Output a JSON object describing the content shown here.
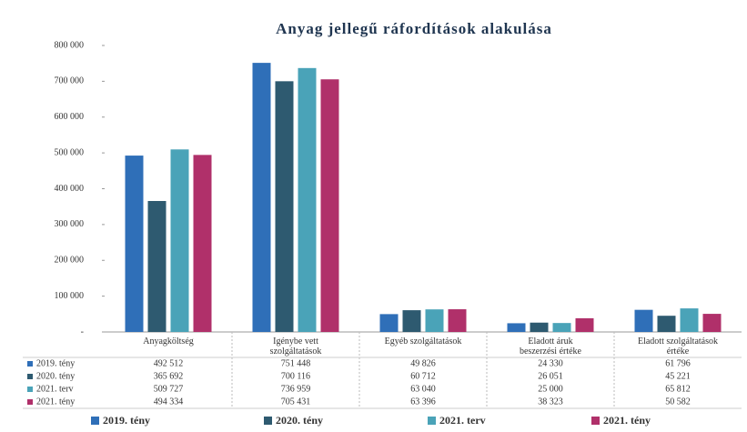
{
  "chart_data": {
    "type": "bar",
    "title": "Anyag jellegű ráfordítások alakulása",
    "categories": [
      "Anyagköltség",
      "Igénybe vett szolgáltatások",
      "Egyéb szolgáltatások",
      "Eladott áruk beszerzési értéke",
      "Eladott szolgáltatások értéke"
    ],
    "series": [
      {
        "name": "2019. tény",
        "color": "#2f6fb8",
        "values": [
          492512,
          751448,
          49826,
          24330,
          61796
        ],
        "value_labels": [
          "492 512",
          "751 448",
          "49 826",
          "24 330",
          "61 796"
        ]
      },
      {
        "name": "2020. tény",
        "color": "#2e5a70",
        "values": [
          365692,
          700116,
          60712,
          26051,
          45221
        ],
        "value_labels": [
          "365 692",
          "700 116",
          "60 712",
          "26 051",
          "45 221"
        ]
      },
      {
        "name": "2021. terv",
        "color": "#4aa3b8",
        "values": [
          509727,
          736959,
          63040,
          25000,
          65812
        ],
        "value_labels": [
          "509 727",
          "736 959",
          "63 040",
          "25 000",
          "65 812"
        ]
      },
      {
        "name": "2021. tény",
        "color": "#b0306a",
        "values": [
          494334,
          705431,
          63396,
          38323,
          50582
        ],
        "value_labels": [
          "494 334",
          "705 431",
          "63 396",
          "38 323",
          "50 582"
        ]
      }
    ],
    "ylim": [
      0,
      800000
    ],
    "yticks": [
      {
        "value": 0,
        "label": "-"
      },
      {
        "value": 100000,
        "label": "100 000"
      },
      {
        "value": 200000,
        "label": "200 000"
      },
      {
        "value": 300000,
        "label": "300 000"
      },
      {
        "value": 400000,
        "label": "400 000"
      },
      {
        "value": 500000,
        "label": "500 000"
      },
      {
        "value": 600000,
        "label": "600 000"
      },
      {
        "value": 700000,
        "label": "700 000"
      },
      {
        "value": 800000,
        "label": "800 000"
      }
    ]
  }
}
